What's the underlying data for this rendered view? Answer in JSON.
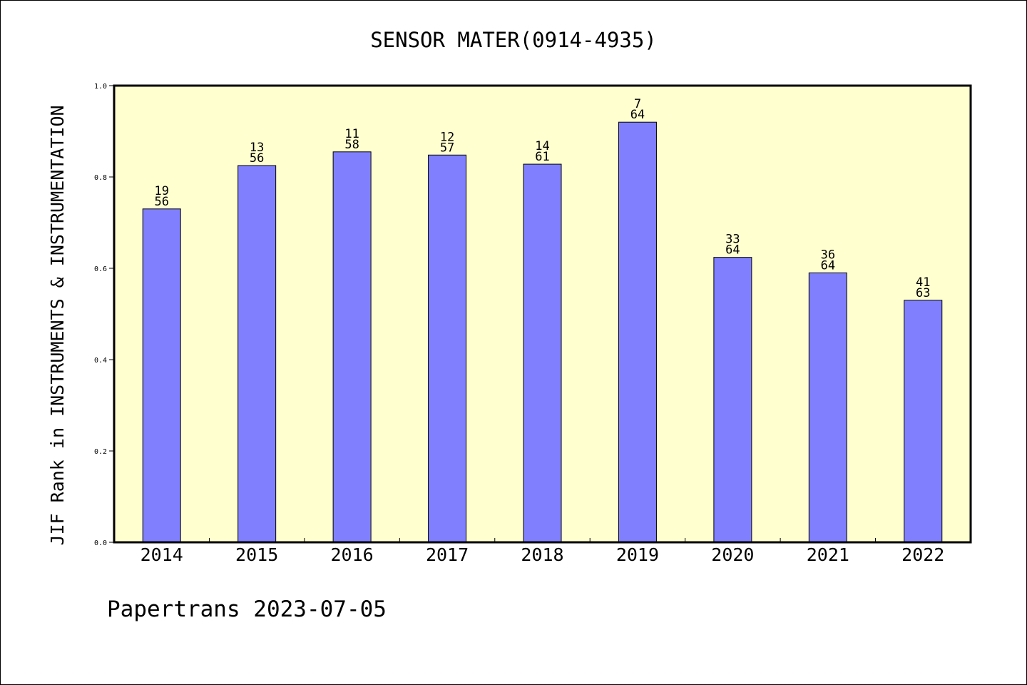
{
  "chart_data": {
    "type": "bar",
    "title": "SENSOR MATER(0914-4935)",
    "ylabel": "JIF Rank in INSTRUMENTS & INSTRUMENTATION",
    "xlabel": "",
    "categories": [
      "2014",
      "2015",
      "2016",
      "2017",
      "2018",
      "2019",
      "2020",
      "2021",
      "2022"
    ],
    "values": [
      0.73,
      0.825,
      0.855,
      0.848,
      0.828,
      0.92,
      0.624,
      0.59,
      0.53
    ],
    "ranks": [
      "19",
      "13",
      "11",
      "12",
      "14",
      "7",
      "33",
      "36",
      "41"
    ],
    "totals": [
      "56",
      "56",
      "58",
      "57",
      "61",
      "64",
      "64",
      "64",
      "63"
    ],
    "ylim": [
      0,
      1.0
    ],
    "yticks": [
      "0.0",
      "0.2",
      "0.4",
      "0.6",
      "0.8",
      "1.0"
    ],
    "grid": false,
    "legend": "none",
    "colors": {
      "plot_background": "#ffffd0",
      "bar_fill": "#8080ff",
      "bar_stroke": "#000000",
      "axis": "#000000"
    }
  },
  "footer": {
    "text": "Papertrans 2023-07-05"
  }
}
